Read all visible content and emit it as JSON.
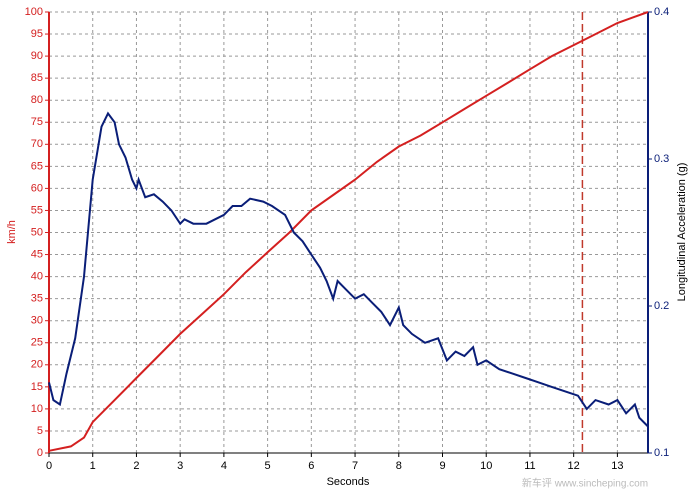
{
  "chart_data": {
    "type": "line",
    "xlabel": "Seconds",
    "ylabel": "km/h",
    "y2label": "Longitudinal Acceleration (g)",
    "watermark": "新车评 www.sincheping.com",
    "xlim": [
      0,
      13.7
    ],
    "xticks": [
      0,
      1,
      2,
      3,
      4,
      5,
      6,
      7,
      8,
      9,
      10,
      11,
      12,
      13
    ],
    "ylim": [
      0,
      100
    ],
    "yticks": [
      0,
      5,
      10,
      15,
      20,
      25,
      30,
      35,
      40,
      45,
      50,
      55,
      60,
      65,
      70,
      75,
      80,
      85,
      90,
      95,
      100
    ],
    "y2lim": [
      0.1,
      0.4
    ],
    "y2ticks": [
      0.1,
      0.2,
      0.3,
      0.4
    ],
    "grid": true,
    "marker_x": 12.2,
    "marker_color": "#c0392b",
    "series": [
      {
        "color": "#d42020",
        "axis": "y",
        "x": [
          0,
          0.5,
          0.8,
          1,
          1.5,
          2,
          2.5,
          3,
          3.5,
          4,
          4.5,
          5,
          5.5,
          6,
          6.5,
          7,
          7.5,
          8,
          8.5,
          9,
          9.5,
          10,
          10.5,
          11,
          11.5,
          12,
          12.5,
          13,
          13.7
        ],
        "values": [
          0.5,
          1.5,
          3.5,
          7,
          12,
          17,
          22,
          27,
          31.5,
          36,
          41,
          45.5,
          50,
          55,
          58.5,
          62,
          66,
          69.5,
          72,
          75,
          78,
          81,
          84,
          87,
          90,
          92.5,
          95,
          97.5,
          100
        ]
      },
      {
        "color": "#0a1e78",
        "axis": "y2",
        "x": [
          0,
          0.1,
          0.25,
          0.4,
          0.6,
          0.8,
          1.0,
          1.2,
          1.35,
          1.5,
          1.6,
          1.75,
          1.9,
          2.0,
          2.05,
          2.2,
          2.4,
          2.6,
          2.8,
          3.0,
          3.1,
          3.3,
          3.6,
          3.8,
          4.0,
          4.2,
          4.4,
          4.6,
          4.9,
          5.1,
          5.4,
          5.6,
          5.8,
          6.0,
          6.2,
          6.35,
          6.5,
          6.6,
          6.8,
          7.0,
          7.2,
          7.4,
          7.6,
          7.8,
          8.0,
          8.1,
          8.3,
          8.6,
          8.9,
          9.1,
          9.3,
          9.5,
          9.7,
          9.8,
          10.0,
          10.3,
          10.6,
          10.9,
          11.2,
          11.5,
          11.8,
          12.1,
          12.3,
          12.5,
          12.8,
          13.0,
          13.2,
          13.4,
          13.5,
          13.7
        ],
        "values": [
          0.148,
          0.136,
          0.133,
          0.154,
          0.178,
          0.22,
          0.286,
          0.322,
          0.331,
          0.325,
          0.31,
          0.301,
          0.286,
          0.28,
          0.286,
          0.274,
          0.276,
          0.271,
          0.265,
          0.256,
          0.259,
          0.256,
          0.256,
          0.259,
          0.262,
          0.268,
          0.268,
          0.273,
          0.271,
          0.268,
          0.262,
          0.25,
          0.244,
          0.235,
          0.226,
          0.217,
          0.205,
          0.217,
          0.211,
          0.205,
          0.208,
          0.202,
          0.196,
          0.187,
          0.199,
          0.187,
          0.181,
          0.175,
          0.178,
          0.163,
          0.169,
          0.166,
          0.172,
          0.16,
          0.163,
          0.157,
          0.154,
          0.151,
          0.148,
          0.145,
          0.142,
          0.139,
          0.13,
          0.136,
          0.133,
          0.136,
          0.127,
          0.133,
          0.124,
          0.118
        ]
      }
    ]
  }
}
